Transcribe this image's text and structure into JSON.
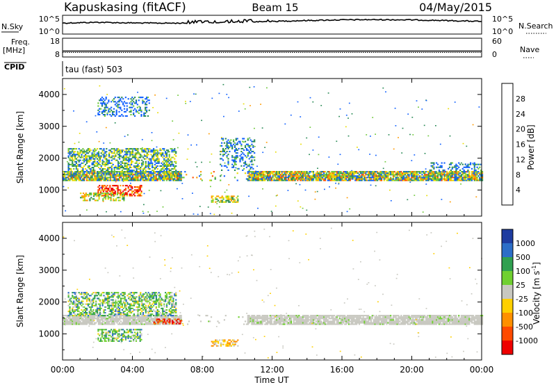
{
  "header": {
    "station": "Kapuskasing (fitACF)",
    "beam": "Beam 15",
    "date": "04/May/2015"
  },
  "status_panels": {
    "nsky_label": "N.Sky",
    "nsky_ticks": [
      "10^5",
      "10^0"
    ],
    "nsearch_label": "N.Search",
    "nsearch_ticks": [
      "10^5",
      "10^0"
    ],
    "freq_label": "Freq.",
    "freq_unit": "[MHz]",
    "freq_ticks": [
      "18",
      "8"
    ],
    "nave_label": "Nave",
    "nave_ticks": [
      "60",
      "0"
    ],
    "cpid_label": "CPID",
    "cpid_value": "tau (fast) 503"
  },
  "chart_data": [
    {
      "type": "heatmap",
      "title": "",
      "xlabel": "Time UT",
      "ylabel": "Slant Range [km]",
      "xlim": [
        0,
        24
      ],
      "ylim": [
        180,
        4500
      ],
      "y_ticks": [
        1000,
        2000,
        3000,
        4000
      ],
      "y_tick_labels": [
        "1000",
        "2000",
        "3000",
        "4000"
      ],
      "x_ticks": [
        0,
        4,
        8,
        12,
        16,
        20,
        24
      ],
      "x_tick_labels": [
        "00:00",
        "04:00",
        "08:00",
        "12:00",
        "16:00",
        "20:00",
        "00:00"
      ],
      "colorbar": {
        "label": "Power [dB]",
        "ticks": [
          "4",
          "8",
          "12",
          "16",
          "20",
          "24",
          "28"
        ],
        "colors": [
          "#0000ee",
          "#1060ff",
          "#2a8a56",
          "#6ec83a",
          "#e8dc00",
          "#ff9a00",
          "#ff5000",
          "#ee0000"
        ]
      },
      "regions": [
        {
          "name": "main-band",
          "t": [
            0,
            24
          ],
          "r": [
            1280,
            1560
          ],
          "level": "mixed"
        },
        {
          "name": "upper-arc",
          "t": [
            0.3,
            6.5
          ],
          "r": [
            1550,
            2300
          ],
          "level": "low-mid"
        },
        {
          "name": "high-arc",
          "t": [
            2,
            5
          ],
          "r": [
            3300,
            3900
          ],
          "level": "low"
        },
        {
          "name": "dawn-enhancement",
          "t": [
            2,
            4.5
          ],
          "r": [
            800,
            1150
          ],
          "level": "high"
        },
        {
          "name": "lower-band",
          "t": [
            1,
            3.5
          ],
          "r": [
            650,
            900
          ],
          "level": "mid"
        },
        {
          "name": "noon-patch",
          "t": [
            8.5,
            10
          ],
          "r": [
            600,
            800
          ],
          "level": "mid"
        },
        {
          "name": "midday-streaks",
          "t": [
            9,
            11
          ],
          "r": [
            1600,
            2600
          ],
          "level": "low"
        },
        {
          "name": "evening-arc",
          "t": [
            21,
            24
          ],
          "r": [
            1600,
            1850
          ],
          "level": "low"
        }
      ]
    },
    {
      "type": "heatmap",
      "title": "",
      "xlabel": "Time UT",
      "ylabel": "Slant Range [km]",
      "xlim": [
        0,
        24
      ],
      "ylim": [
        180,
        4500
      ],
      "y_ticks": [
        1000,
        2000,
        3000,
        4000
      ],
      "y_tick_labels": [
        "1000",
        "2000",
        "3000",
        "4000"
      ],
      "x_ticks": [
        0,
        4,
        8,
        12,
        16,
        20,
        24
      ],
      "x_tick_labels": [
        "00:00",
        "04:00",
        "08:00",
        "12:00",
        "16:00",
        "20:00",
        "00:00"
      ],
      "colorbar": {
        "label": "Velocity [m s-1]",
        "ticks": [
          "1000",
          "500",
          "100",
          "25",
          "-25",
          "-100",
          "-500",
          "-1000"
        ],
        "colors": [
          "#1e3ca0",
          "#2c6ec8",
          "#30a050",
          "#70d030",
          "#c8c8c0",
          "#ffd000",
          "#ff9000",
          "#ff4a00",
          "#ee0000"
        ]
      },
      "regions": [
        {
          "name": "main-band",
          "t": [
            0,
            24
          ],
          "r": [
            1280,
            1560
          ],
          "level": "ground"
        },
        {
          "name": "upper-arc",
          "t": [
            0.3,
            6.5
          ],
          "r": [
            1550,
            2300
          ],
          "level": "positive"
        },
        {
          "name": "dawn-enhancement",
          "t": [
            2,
            4.5
          ],
          "r": [
            750,
            1150
          ],
          "level": "positive"
        },
        {
          "name": "noon-patch",
          "t": [
            8.5,
            10
          ],
          "r": [
            600,
            800
          ],
          "level": "negative"
        },
        {
          "name": "red-patch",
          "t": [
            5.2,
            6.8
          ],
          "r": [
            1300,
            1450
          ],
          "level": "strong-negative"
        }
      ]
    }
  ]
}
